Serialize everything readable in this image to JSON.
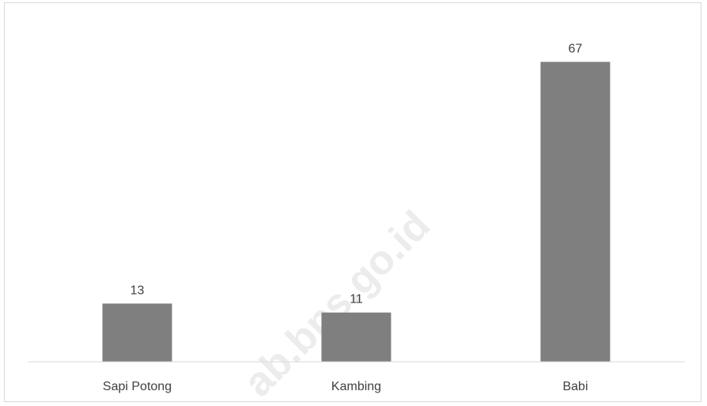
{
  "chart_data": {
    "type": "bar",
    "categories": [
      "Sapi Potong",
      "Kambing",
      "Babi"
    ],
    "values": [
      13,
      11,
      67
    ],
    "data_labels": [
      "13",
      "11",
      "67"
    ],
    "bar_color": "#7f7f7f",
    "ylim": [
      0,
      75
    ],
    "grid": false,
    "legend": "none"
  },
  "watermark": "ab.bps.go.id"
}
